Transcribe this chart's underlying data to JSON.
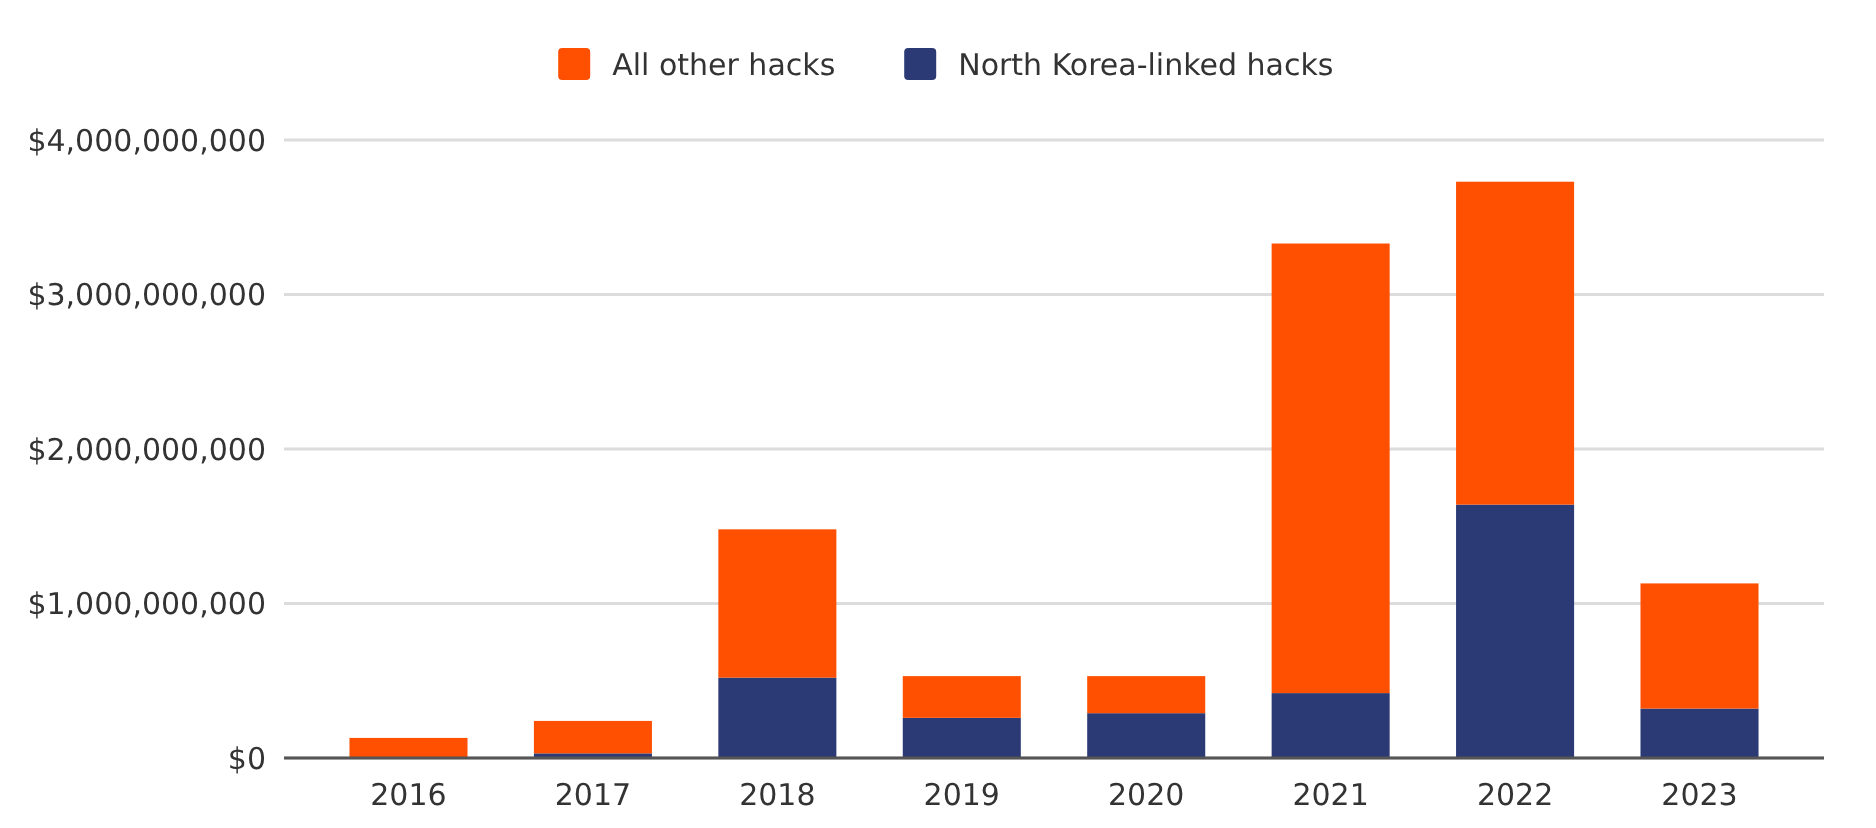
{
  "chart_data": {
    "type": "bar",
    "categories": [
      "2016",
      "2017",
      "2018",
      "2019",
      "2020",
      "2021",
      "2022",
      "2023"
    ],
    "series": [
      {
        "name": "North Korea-linked hacks",
        "color": "#2b3a75",
        "values": [
          null,
          30000000,
          520000000,
          260000000,
          290000000,
          420000000,
          1640000000,
          320000000
        ]
      },
      {
        "name": "All other hacks",
        "color": "#fe5000",
        "values": [
          130000000,
          210000000,
          960000000,
          270000000,
          240000000,
          2910000000,
          2090000000,
          810000000
        ]
      }
    ],
    "stacked": true,
    "ylim": [
      0,
      4000000000
    ],
    "yticks": [
      {
        "value": 0,
        "label": "$0"
      },
      {
        "value": 1000000000,
        "label": "$1,000,000,000"
      },
      {
        "value": 2000000000,
        "label": "$2,000,000,000"
      },
      {
        "value": 3000000000,
        "label": "$3,000,000,000"
      },
      {
        "value": 4000000000,
        "label": "$4,000,000,000"
      }
    ],
    "grid": "y",
    "legend": "top"
  }
}
